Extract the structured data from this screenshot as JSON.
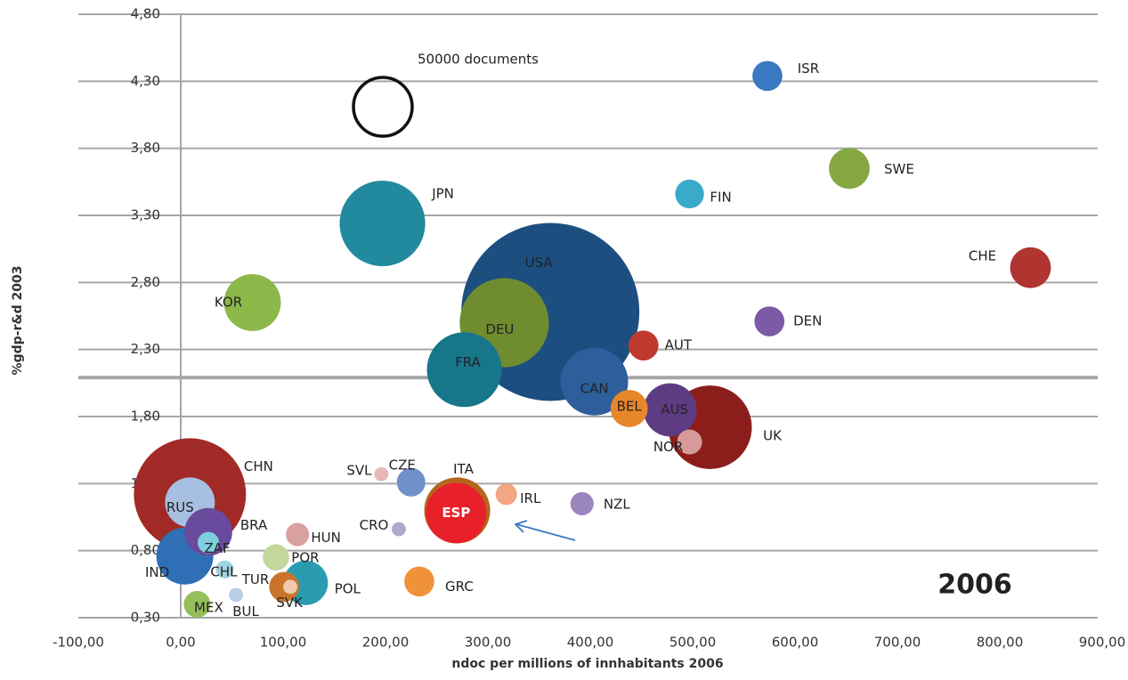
{
  "chart_data": {
    "type": "bubble",
    "x_label": "ndoc per millions of innhabitants 2006",
    "y_label": "%gdp-r&d 2003",
    "annotation": "2006",
    "size_legend": {
      "label": "50000 documents",
      "value": 50000
    },
    "hline": 2.09,
    "xlim": [
      -100,
      900
    ],
    "ylim": [
      0.3,
      4.8
    ],
    "xticks": [
      {
        "value": -100,
        "label": "-100,00"
      },
      {
        "value": 0,
        "label": "0,00"
      },
      {
        "value": 100,
        "label": "100,00"
      },
      {
        "value": 200,
        "label": "200,00"
      },
      {
        "value": 300,
        "label": "300,00"
      },
      {
        "value": 400,
        "label": "400,00"
      },
      {
        "value": 500,
        "label": "500,00"
      },
      {
        "value": 600,
        "label": "600,00"
      },
      {
        "value": 700,
        "label": "700,00"
      },
      {
        "value": 800,
        "label": "800,00"
      },
      {
        "value": 900,
        "label": "900,00"
      }
    ],
    "yticks": [
      {
        "value": 0.3,
        "label": "0,30"
      },
      {
        "value": 0.8,
        "label": "0,80"
      },
      {
        "value": 1.3,
        "label": "1,30"
      },
      {
        "value": 1.8,
        "label": "1,80"
      },
      {
        "value": 2.3,
        "label": "2,30"
      },
      {
        "value": 2.8,
        "label": "2,80"
      },
      {
        "value": 3.3,
        "label": "3,30"
      },
      {
        "value": 3.8,
        "label": "3,80"
      },
      {
        "value": 4.3,
        "label": "4,30"
      },
      {
        "value": 4.8,
        "label": "4,80"
      }
    ],
    "grid": true,
    "points": [
      {
        "label": "ISR",
        "x": 573,
        "y": 4.34,
        "size": 13000,
        "color": "#3a78c2"
      },
      {
        "label": "SWE",
        "x": 653,
        "y": 3.65,
        "size": 24000,
        "color": "#86a843"
      },
      {
        "label": "FIN",
        "x": 497,
        "y": 3.46,
        "size": 12000,
        "color": "#3aaacb"
      },
      {
        "label": "JPN",
        "x": 197,
        "y": 3.24,
        "size": 106000,
        "color": "#218a9e"
      },
      {
        "label": "CHE",
        "x": 830,
        "y": 2.91,
        "size": 24000,
        "color": "#b0342f"
      },
      {
        "label": "USA",
        "x": 361,
        "y": 2.58,
        "size": 459000,
        "color": "#1c4f80"
      },
      {
        "label": "KOR",
        "x": 70,
        "y": 2.65,
        "size": 47000,
        "color": "#8cb84a"
      },
      {
        "label": "DEU",
        "x": 316,
        "y": 2.5,
        "size": 115000,
        "color": "#6f8c2f"
      },
      {
        "label": "DEN",
        "x": 575,
        "y": 2.51,
        "size": 13000,
        "color": "#7b5aa6"
      },
      {
        "label": "AUT",
        "x": 452,
        "y": 2.33,
        "size": 13000,
        "color": "#c0392f"
      },
      {
        "label": "FRA",
        "x": 277,
        "y": 2.15,
        "size": 81000,
        "color": "#17768a"
      },
      {
        "label": "CAN",
        "x": 404,
        "y": 2.06,
        "size": 66000,
        "color": "#2e5f9c"
      },
      {
        "label": "BEL",
        "x": 438,
        "y": 1.86,
        "size": 20000,
        "color": "#e8862a"
      },
      {
        "label": "AUS",
        "x": 478,
        "y": 1.85,
        "size": 41000,
        "color": "#5d3c83"
      },
      {
        "label": "UK",
        "x": 517,
        "y": 1.72,
        "size": 101000,
        "color": "#8b1e1a"
      },
      {
        "label": "NOR",
        "x": 497,
        "y": 1.61,
        "size": 9000,
        "color": "#d79a9a"
      },
      {
        "label": "CHN",
        "x": 9,
        "y": 1.22,
        "size": 182000,
        "color": "#a12a26"
      },
      {
        "label": "RUS",
        "x": 9,
        "y": 1.16,
        "size": 36000,
        "color": "#a7bfe0"
      },
      {
        "label": "SVL",
        "x": 196,
        "y": 1.37,
        "size": 2900,
        "color": "#e6b8b8"
      },
      {
        "label": "CZE",
        "x": 225,
        "y": 1.31,
        "size": 11750,
        "color": "#6f90c8"
      },
      {
        "label": "ITA",
        "x": 270,
        "y": 1.1,
        "size": 63000,
        "color": "#b5651d"
      },
      {
        "label": "ESP",
        "x": 269,
        "y": 1.08,
        "size": 53000,
        "color": "#e8202a"
      },
      {
        "label": "IRL",
        "x": 318,
        "y": 1.22,
        "size": 6600,
        "color": "#f4a582"
      },
      {
        "label": "NZL",
        "x": 392,
        "y": 1.15,
        "size": 7800,
        "color": "#9a86bd"
      },
      {
        "label": "CRO",
        "x": 213,
        "y": 0.96,
        "size": 2900,
        "color": "#b0a8cc"
      },
      {
        "label": "BRA",
        "x": 27,
        "y": 0.94,
        "size": 33000,
        "color": "#6a4a9c"
      },
      {
        "label": "ZAF",
        "x": 27,
        "y": 0.86,
        "size": 6600,
        "color": "#7ecfdf"
      },
      {
        "label": "HUN",
        "x": 114,
        "y": 0.92,
        "size": 7800,
        "color": "#d9a0a0"
      },
      {
        "label": "IND",
        "x": 4,
        "y": 0.76,
        "size": 47000,
        "color": "#2f6fb5"
      },
      {
        "label": "POR",
        "x": 93,
        "y": 0.75,
        "size": 10000,
        "color": "#c3d69b"
      },
      {
        "label": "CHL",
        "x": 43,
        "y": 0.66,
        "size": 4600,
        "color": "#9fd3e0"
      },
      {
        "label": "TUR",
        "x": 107,
        "y": 0.53,
        "size": 2900,
        "color": "#f2c9b0"
      },
      {
        "label": "SVK",
        "x": 101,
        "y": 0.53,
        "size": 13000,
        "color": "#c9742a"
      },
      {
        "label": "POL",
        "x": 122,
        "y": 0.56,
        "size": 28700,
        "color": "#2a9cb0"
      },
      {
        "label": "BUL",
        "x": 54,
        "y": 0.47,
        "size": 2900,
        "color": "#b9cde6"
      },
      {
        "label": "MEX",
        "x": 16,
        "y": 0.4,
        "size": 10300,
        "color": "#94bf5a"
      },
      {
        "label": "GRC",
        "x": 233,
        "y": 0.57,
        "size": 13000,
        "color": "#f0923a"
      }
    ]
  }
}
